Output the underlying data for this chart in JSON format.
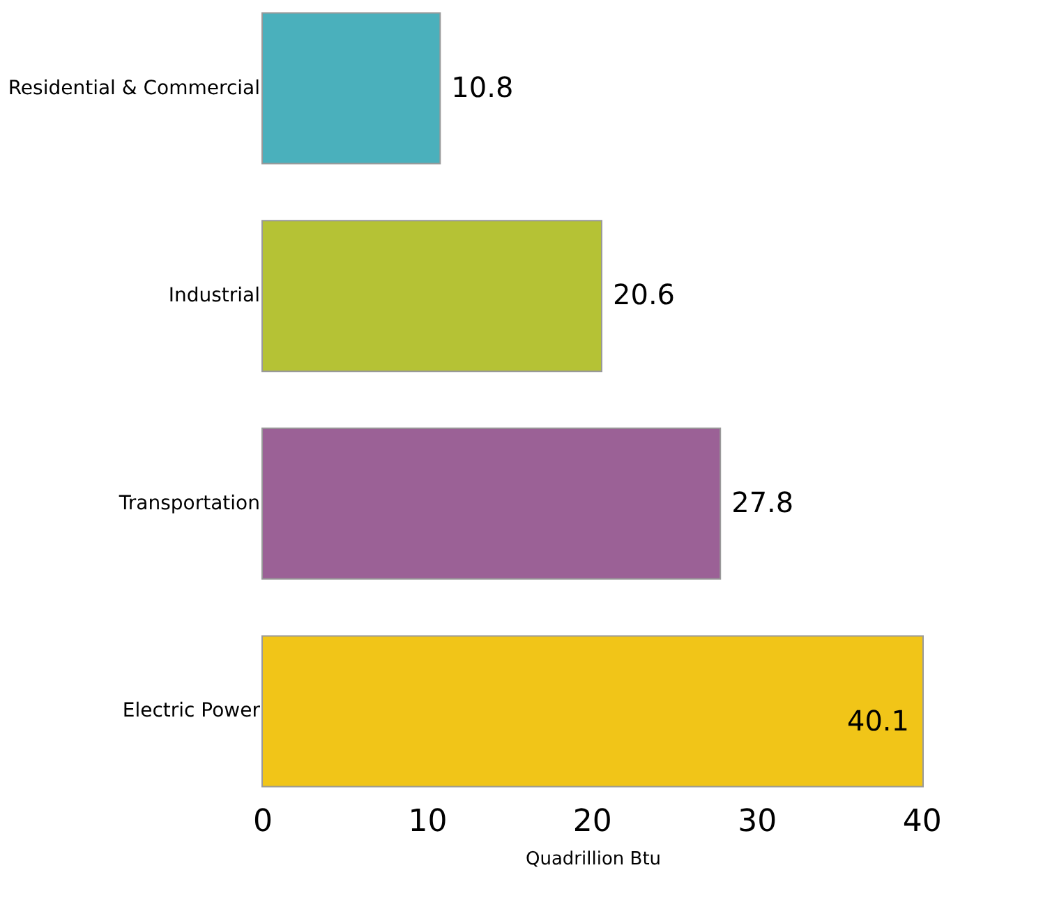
{
  "chart_data": {
    "type": "bar",
    "orientation": "horizontal",
    "categories": [
      "Residential & Commercial",
      "Industrial",
      "Transportation",
      "Electric Power"
    ],
    "values": [
      10.8,
      20.6,
      27.8,
      40.1
    ],
    "colors": [
      "#4ab0bc",
      "#b5c235",
      "#9b6196",
      "#f1c518"
    ],
    "xlabel": "Quadrillion Btu",
    "xlim": [
      0,
      40.1
    ],
    "xticks": [
      0,
      10,
      20,
      30,
      40
    ],
    "data_labels": true,
    "grid": false
  }
}
